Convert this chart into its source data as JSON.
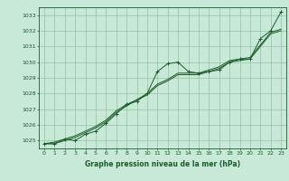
{
  "title": "Graphe pression niveau de la mer (hPa)",
  "background_color": "#c8e8d8",
  "plot_bg_color": "#c8e8d8",
  "grid_color": "#88bb99",
  "line_color": "#1a5c2a",
  "dark_green": "#1a5c2a",
  "xlim": [
    -0.5,
    23.5
  ],
  "ylim": [
    1024.5,
    1033.5
  ],
  "yticks": [
    1025,
    1026,
    1027,
    1028,
    1029,
    1030,
    1031,
    1032,
    1033
  ],
  "xticks": [
    0,
    1,
    2,
    3,
    4,
    5,
    6,
    7,
    8,
    9,
    10,
    11,
    12,
    13,
    14,
    15,
    16,
    17,
    18,
    19,
    20,
    21,
    22,
    23
  ],
  "series": [
    [
      1024.8,
      1024.8,
      1025.1,
      1025.0,
      1025.4,
      1025.6,
      1026.1,
      1026.7,
      1027.3,
      1027.5,
      1028.0,
      1029.4,
      1029.9,
      1030.0,
      1029.4,
      1029.3,
      1029.4,
      1029.5,
      1030.0,
      1030.2,
      1030.2,
      1031.5,
      1032.0,
      1033.2
    ],
    [
      1024.8,
      1024.8,
      1025.0,
      1025.2,
      1025.5,
      1025.8,
      1026.2,
      1026.8,
      1027.2,
      1027.6,
      1027.9,
      1028.5,
      1028.8,
      1029.2,
      1029.2,
      1029.2,
      1029.4,
      1029.6,
      1030.0,
      1030.1,
      1030.2,
      1031.0,
      1031.8,
      1032.0
    ],
    [
      1024.8,
      1024.9,
      1025.1,
      1025.3,
      1025.6,
      1025.9,
      1026.3,
      1026.9,
      1027.3,
      1027.6,
      1028.0,
      1028.6,
      1028.9,
      1029.3,
      1029.3,
      1029.3,
      1029.5,
      1029.7,
      1030.1,
      1030.2,
      1030.3,
      1031.1,
      1031.9,
      1032.1
    ]
  ]
}
